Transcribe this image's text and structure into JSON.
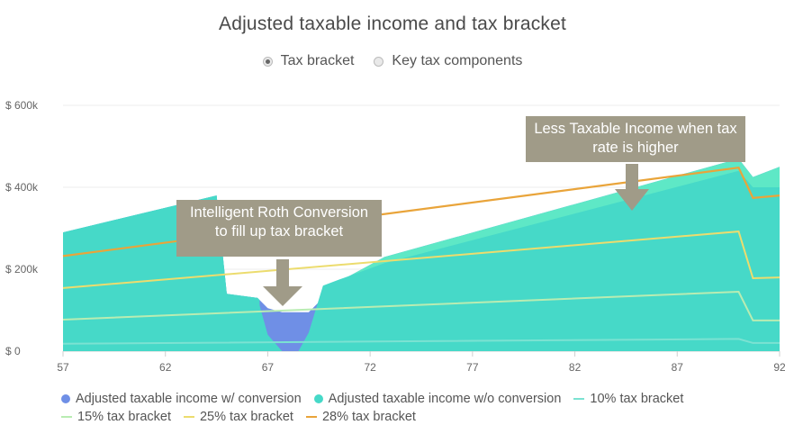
{
  "title": "Adjusted taxable income and tax bracket",
  "toggle": {
    "options": [
      {
        "label": "Tax bracket",
        "selected": true
      },
      {
        "label": "Key tax components",
        "selected": false
      }
    ]
  },
  "annotations": [
    {
      "text": "Intelligent Roth Conversion to fill up tax bracket"
    },
    {
      "text": "Less Taxable Income when tax rate is higher"
    }
  ],
  "colors": {
    "with_conversion": "#6f8fe6",
    "without_conversion": "#46d9c8",
    "without_conversion_top": "#5ee8c6",
    "bracket_10": "#7be2d2",
    "bracket_15": "#b9ecb2",
    "bracket_25": "#ecdc6e",
    "bracket_28": "#e9a43a",
    "callout": "#a09b88"
  },
  "chart_data": {
    "type": "area",
    "title": "Adjusted taxable income and tax bracket",
    "xlabel": "",
    "ylabel": "",
    "xlim": [
      57,
      92
    ],
    "ylim": [
      0,
      600000
    ],
    "x_ticks": [
      "57",
      "62",
      "67",
      "72",
      "77",
      "82",
      "87",
      "92"
    ],
    "y_ticks": [
      "$ 0",
      "$ 200k",
      "$ 400k",
      "$ 600k"
    ],
    "y_tick_values": [
      0,
      200000,
      400000,
      600000
    ],
    "grid": true,
    "legend_position": "bottom",
    "series": [
      {
        "name": "Adjusted taxable income w/ conversion",
        "kind": "area",
        "x": [
          57,
          64.5,
          65,
          66.5,
          67,
          67.7,
          68.5,
          69,
          69.7,
          70.5,
          72.7,
          90,
          90.7,
          92
        ],
        "y": [
          290000,
          380000,
          140000,
          130000,
          105000,
          95000,
          95000,
          95000,
          130000,
          170000,
          230000,
          470000,
          425000,
          450000
        ]
      },
      {
        "name": "Adjusted taxable income w/o conversion",
        "kind": "area",
        "x": [
          57,
          64.5,
          65,
          66.5,
          67,
          67.7,
          68.5,
          69,
          69.7,
          70.5,
          72.7,
          90,
          90.7,
          92
        ],
        "y": [
          290000,
          380000,
          140000,
          130000,
          40000,
          0,
          0,
          45000,
          160000,
          175000,
          215000,
          440000,
          400000,
          400000
        ]
      },
      {
        "name": "10% tax bracket",
        "kind": "line",
        "x": [
          57,
          90,
          90.7,
          92
        ],
        "y": [
          18000,
          30000,
          20000,
          20000
        ]
      },
      {
        "name": "15% tax bracket",
        "kind": "line",
        "x": [
          57,
          90,
          90.7,
          92
        ],
        "y": [
          77000,
          145000,
          75000,
          75000
        ]
      },
      {
        "name": "25% tax bracket",
        "kind": "line",
        "x": [
          57,
          90,
          90.7,
          92
        ],
        "y": [
          154000,
          292000,
          178000,
          180000
        ]
      },
      {
        "name": "28% tax bracket",
        "kind": "line",
        "x": [
          57,
          90,
          90.7,
          92
        ],
        "y": [
          232000,
          448000,
          374000,
          380000
        ]
      }
    ]
  },
  "legend": [
    {
      "label": "Adjusted taxable income w/ conversion",
      "swatch": "dot",
      "color": "#6f8fe6"
    },
    {
      "label": "Adjusted taxable income w/o conversion",
      "swatch": "dot",
      "color": "#46d9c8"
    },
    {
      "label": "10% tax bracket",
      "swatch": "line",
      "color": "#7be2d2"
    },
    {
      "label": "15% tax bracket",
      "swatch": "line",
      "color": "#b9ecb2"
    },
    {
      "label": "25% tax bracket",
      "swatch": "line",
      "color": "#ecdc6e"
    },
    {
      "label": "28% tax bracket",
      "swatch": "line",
      "color": "#e9a43a"
    }
  ]
}
